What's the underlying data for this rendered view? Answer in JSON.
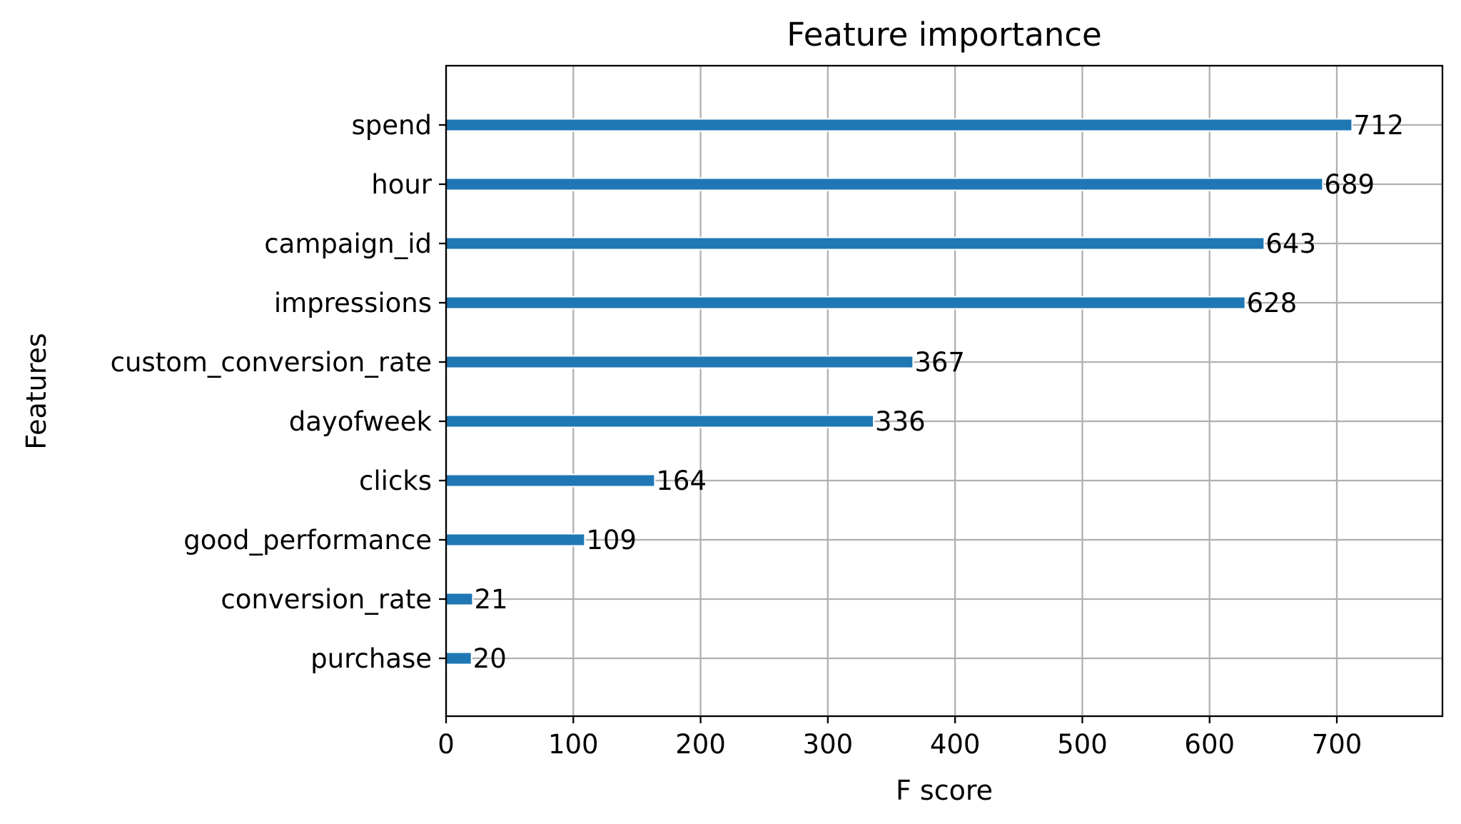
{
  "chart_data": {
    "type": "bar",
    "orientation": "horizontal",
    "title": "Feature importance",
    "xlabel": "F score",
    "ylabel": "Features",
    "categories": [
      "purchase",
      "conversion_rate",
      "good_performance",
      "clicks",
      "dayofweek",
      "custom_conversion_rate",
      "impressions",
      "campaign_id",
      "hour",
      "spend"
    ],
    "values": [
      20,
      21,
      109,
      164,
      336,
      367,
      628,
      643,
      689,
      712
    ],
    "xlim": [
      0,
      783
    ],
    "xticks": [
      0,
      100,
      200,
      300,
      400,
      500,
      600,
      700
    ],
    "grid": true,
    "bar_color": "#1f77b4",
    "bar_edge_color": "#ffffff",
    "show_value_labels": true
  }
}
